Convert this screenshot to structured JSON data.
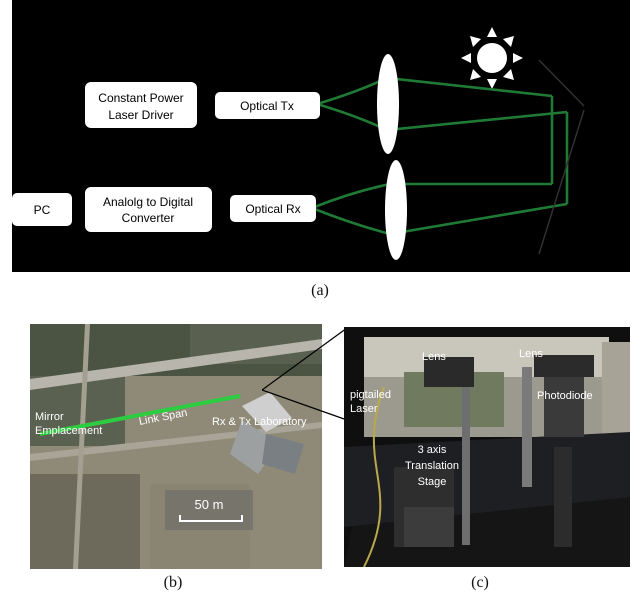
{
  "panel_a": {
    "caption": "(a)",
    "boxes": {
      "laser_driver": [
        "Constant Power",
        "Laser Driver"
      ],
      "optical_tx": "Optical Tx",
      "pc": "PC",
      "adc": [
        "Analolg  to Digital",
        "Converter"
      ],
      "optical_rx": "Optical Rx"
    },
    "colors": {
      "background": "#000000",
      "beam": "#1f7a35",
      "box": "#ffffff",
      "sun": "#ffffff"
    },
    "icons": [
      "sun-icon",
      "lens-icon",
      "mirror-icon"
    ]
  },
  "panel_b": {
    "caption": "(b)",
    "labels": {
      "mirror": [
        "Mirror",
        "Emplacement"
      ],
      "link_span": "Link Span",
      "lab": "Rx & Tx Laboratory",
      "scale": "50 m"
    },
    "colors": {
      "link": "#2ecc40"
    }
  },
  "panel_c": {
    "caption": "(c)",
    "labels": {
      "lens_left": "Lens",
      "lens_right": "Lens",
      "pigtailed": [
        "pigtailed",
        "Laser"
      ],
      "photodiode": "Photodiode",
      "stage": [
        "3 axis",
        "Translation",
        "Stage"
      ]
    }
  }
}
